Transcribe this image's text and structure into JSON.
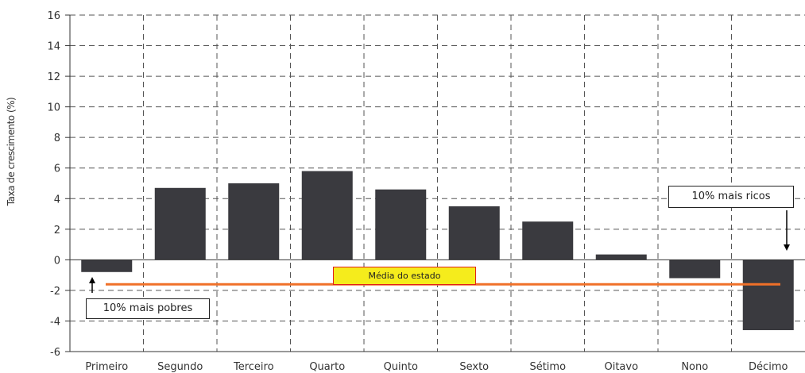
{
  "chart_data": {
    "type": "bar",
    "ylabel": "Taxa de crescimento (%)",
    "xlabel": "",
    "categories": [
      "Primeiro",
      "Segundo",
      "Terceiro",
      "Quarto",
      "Quinto",
      "Sexto",
      "Sétimo",
      "Oitavo",
      "Nono",
      "Décimo"
    ],
    "values": [
      -0.8,
      4.7,
      5.0,
      5.8,
      4.6,
      3.5,
      2.5,
      0.35,
      -1.2,
      -4.6
    ],
    "ylim": [
      -6,
      16
    ],
    "yticks": [
      -6,
      -4,
      -2,
      0,
      2,
      4,
      6,
      8,
      10,
      12,
      14,
      16
    ],
    "grid": true,
    "bar_color": "#3a3a3f",
    "reference_line": {
      "label": "Média do estado",
      "value": -1.6,
      "color": "#f07028"
    },
    "annotations": [
      {
        "text": "10% mais pobres",
        "target": "Primeiro"
      },
      {
        "text": "10% mais ricos",
        "target": "Décimo"
      }
    ]
  }
}
